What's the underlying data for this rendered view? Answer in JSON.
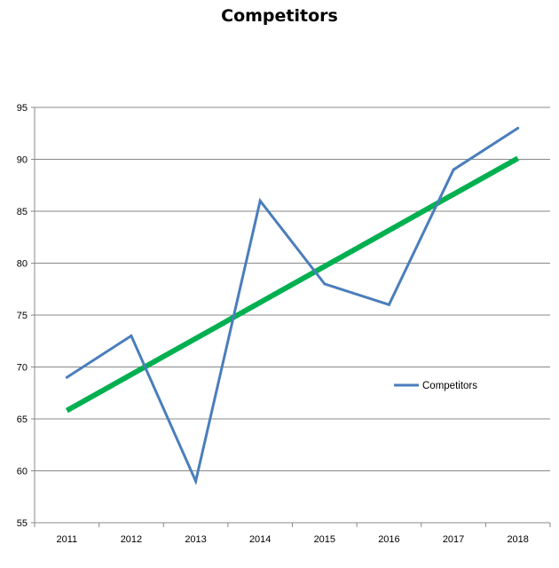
{
  "chart_data": {
    "type": "line",
    "title": "Competitors",
    "categories": [
      "2011",
      "2012",
      "2013",
      "2014",
      "2015",
      "2016",
      "2017",
      "2018"
    ],
    "series": [
      {
        "name": "Competitors",
        "values": [
          69,
          73,
          59,
          86,
          78,
          76,
          89,
          93
        ],
        "color": "#4A7EBB"
      }
    ],
    "trendline": {
      "type": "linear",
      "color": "#00B050",
      "start": 65.8,
      "end": 90.1
    },
    "y_ticks": [
      "55",
      "60",
      "65",
      "70",
      "75",
      "80",
      "85",
      "90",
      "95"
    ],
    "ylim": [
      55,
      95
    ],
    "grid": "horizontal",
    "legend_position": "right-middle",
    "xlabel": "",
    "ylabel": ""
  }
}
